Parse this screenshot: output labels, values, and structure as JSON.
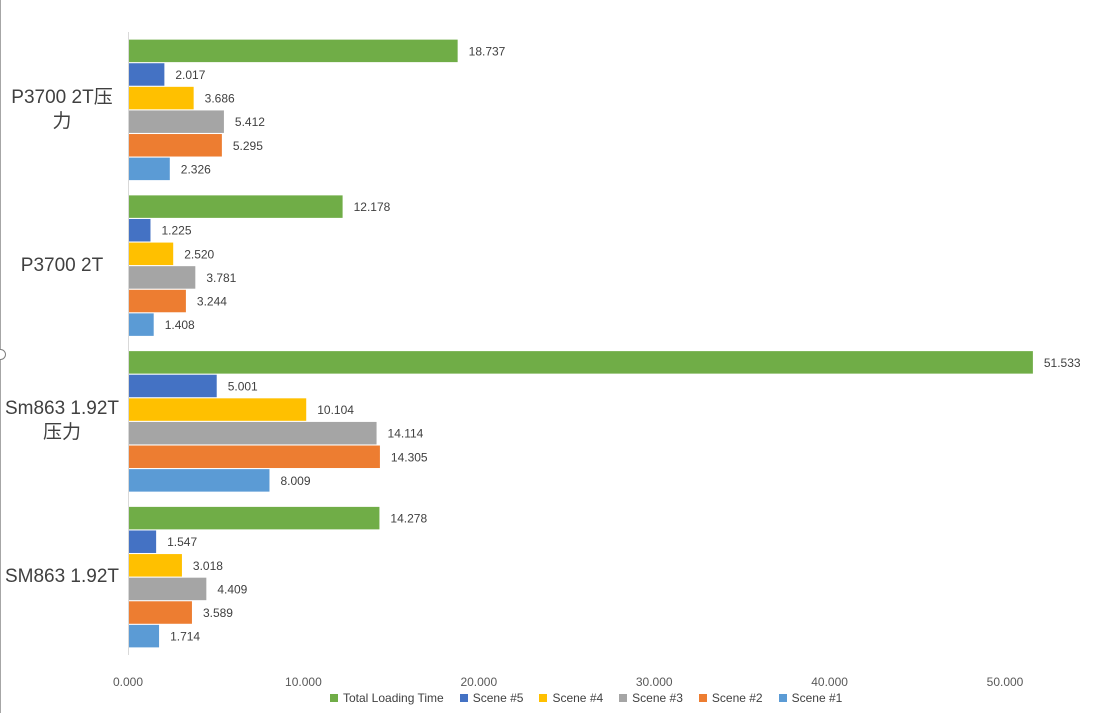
{
  "chart_data": {
    "type": "bar",
    "orientation": "horizontal",
    "categories": [
      "P3700 2T压力",
      "P3700 2T",
      "Sm863 1.92T 压力",
      "SM863 1.92T"
    ],
    "category_label_lines": [
      [
        "P3700 2T压",
        "力"
      ],
      [
        "P3700 2T"
      ],
      [
        "Sm863 1.92T",
        "压力"
      ],
      [
        "SM863 1.92T"
      ]
    ],
    "series": [
      {
        "name": "Total Loading Time",
        "color": "#70ad47",
        "values": [
          18.737,
          12.178,
          51.533,
          14.278
        ],
        "labels": [
          "18.737",
          "12.178",
          "51.533",
          "14.278"
        ]
      },
      {
        "name": "Scene #5",
        "color": "#4472c4",
        "values": [
          2.017,
          1.225,
          5.001,
          1.547
        ],
        "labels": [
          "2.017",
          "1.225",
          "5.001",
          "1.547"
        ]
      },
      {
        "name": "Scene #4",
        "color": "#ffc000",
        "values": [
          3.686,
          2.52,
          10.104,
          3.018
        ],
        "labels": [
          "3.686",
          "2.520",
          "10.104",
          "3.018"
        ]
      },
      {
        "name": "Scene #3",
        "color": "#a5a5a5",
        "values": [
          5.412,
          3.781,
          14.114,
          4.409
        ],
        "labels": [
          "5.412",
          "3.781",
          "14.114",
          "4.409"
        ]
      },
      {
        "name": "Scene #2",
        "color": "#ed7d31",
        "values": [
          5.295,
          3.244,
          14.305,
          3.589
        ],
        "labels": [
          "5.295",
          "3.244",
          "14.305",
          "3.589"
        ]
      },
      {
        "name": "Scene #1",
        "color": "#5b9bd5",
        "values": [
          2.326,
          1.408,
          8.009,
          1.714
        ],
        "labels": [
          "2.326",
          "1.408",
          "8.009",
          "1.714"
        ]
      }
    ],
    "xlim": [
      0,
      50
    ],
    "x_ticks": [
      0,
      10,
      20,
      30,
      40,
      50
    ],
    "x_tick_labels": [
      "0.000",
      "10.000",
      "20.000",
      "30.000",
      "40.000",
      "50.000"
    ],
    "grid": false,
    "legend_position": "bottom"
  }
}
